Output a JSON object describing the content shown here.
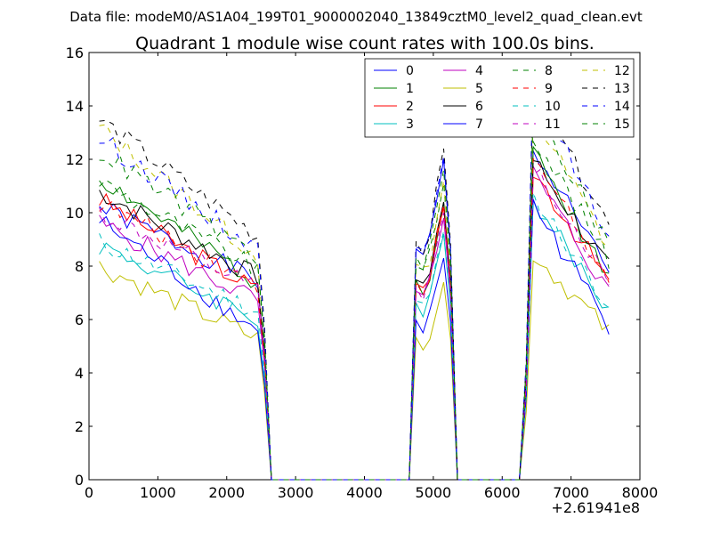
{
  "chart_data": {
    "type": "line",
    "suptitle": "Data file: modeM0/AS1A04_199T01_9000002040_13849cztM0_level2_quad_clean.evt",
    "title": "Quadrant 1 module wise count rates with 100.0s bins.",
    "xlabel": "",
    "ylabel": "",
    "x_offset_label": "+2.61941e8",
    "xlim": [
      0,
      8000
    ],
    "ylim": [
      0,
      16
    ],
    "xticks": [
      "0",
      "1000",
      "2000",
      "3000",
      "4000",
      "5000",
      "6000",
      "7000",
      "8000"
    ],
    "yticks": [
      "0",
      "2",
      "4",
      "6",
      "8",
      "10",
      "12",
      "14",
      "16"
    ],
    "legend_position": "top-right",
    "x": [
      150,
      250,
      350,
      450,
      550,
      650,
      750,
      850,
      950,
      1050,
      1150,
      1250,
      1350,
      1450,
      1550,
      1650,
      1750,
      1850,
      1950,
      2050,
      2150,
      2250,
      2350,
      2450,
      2550,
      2650,
      2750,
      2850,
      2950,
      3050,
      3150,
      3250,
      3350,
      3450,
      3550,
      3650,
      3750,
      3850,
      3950,
      4050,
      4150,
      4250,
      4350,
      4450,
      4550,
      4650,
      4750,
      4850,
      4950,
      5050,
      5150,
      5250,
      5350,
      5450,
      5550,
      5650,
      5750,
      5850,
      5950,
      6050,
      6150,
      6250,
      6350,
      6450,
      6550,
      6650,
      6750,
      6850,
      6950,
      7050,
      7150,
      7250,
      7350,
      7450,
      7550
    ],
    "series": [
      {
        "name": "0",
        "color": "#0000ff",
        "dash": "solid",
        "start": 10.2,
        "peak1": 12.0,
        "peak2": 12.3,
        "end": 7.8,
        "seed": 1
      },
      {
        "name": "1",
        "color": "#008000",
        "dash": "solid",
        "start": 11.3,
        "peak1": 10.4,
        "peak2": 12.2,
        "end": 7.7,
        "seed": 2
      },
      {
        "name": "2",
        "color": "#ff0000",
        "dash": "solid",
        "start": 10.5,
        "peak1": 10.2,
        "peak2": 11.6,
        "end": 7.4,
        "seed": 3
      },
      {
        "name": "3",
        "color": "#00bfbf",
        "dash": "solid",
        "start": 8.8,
        "peak1": 9.2,
        "peak2": 10.5,
        "end": 6.3,
        "seed": 4
      },
      {
        "name": "4",
        "color": "#bf00bf",
        "dash": "solid",
        "start": 9.6,
        "peak1": 9.8,
        "peak2": 11.5,
        "end": 7.0,
        "seed": 5
      },
      {
        "name": "5",
        "color": "#bfbf00",
        "dash": "solid",
        "start": 8.0,
        "peak1": 7.4,
        "peak2": 8.5,
        "end": 5.5,
        "seed": 6
      },
      {
        "name": "6",
        "color": "#000000",
        "dash": "solid",
        "start": 10.8,
        "peak1": 10.4,
        "peak2": 12.0,
        "end": 7.9,
        "seed": 7
      },
      {
        "name": "7",
        "color": "#0000ff",
        "dash": "solid",
        "start": 9.7,
        "peak1": 8.3,
        "peak2": 10.3,
        "end": 5.8,
        "seed": 8
      },
      {
        "name": "8",
        "color": "#008000",
        "dash": "dashed",
        "start": 11.2,
        "peak1": 11.1,
        "peak2": 13.0,
        "end": 8.2,
        "seed": 9
      },
      {
        "name": "9",
        "color": "#ff0000",
        "dash": "dashed",
        "start": 10.4,
        "peak1": 10.3,
        "peak2": 12.1,
        "end": 7.6,
        "seed": 10
      },
      {
        "name": "10",
        "color": "#00bfbf",
        "dash": "dashed",
        "start": 8.9,
        "peak1": 9.3,
        "peak2": 10.6,
        "end": 6.6,
        "seed": 11
      },
      {
        "name": "11",
        "color": "#bf00bf",
        "dash": "dashed",
        "start": 10.0,
        "peak1": 10.0,
        "peak2": 11.8,
        "end": 7.4,
        "seed": 12
      },
      {
        "name": "12",
        "color": "#bfbf00",
        "dash": "dashed",
        "start": 13.2,
        "peak1": 11.2,
        "peak2": 13.7,
        "end": 8.7,
        "seed": 13
      },
      {
        "name": "13",
        "color": "#000000",
        "dash": "dashed",
        "start": 13.5,
        "peak1": 12.4,
        "peak2": 14.6,
        "end": 9.5,
        "seed": 14
      },
      {
        "name": "14",
        "color": "#0000ff",
        "dash": "dashed",
        "start": 12.8,
        "peak1": 12.1,
        "peak2": 14.9,
        "end": 9.0,
        "seed": 15
      },
      {
        "name": "15",
        "color": "#008000",
        "dash": "dashed",
        "start": 12.3,
        "peak1": 11.6,
        "peak2": 14.1,
        "end": 8.7,
        "seed": 16
      }
    ]
  }
}
